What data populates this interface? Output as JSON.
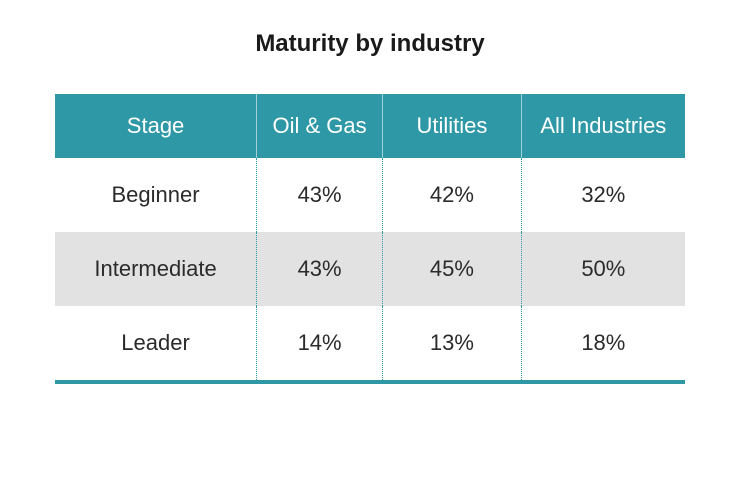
{
  "title": "Maturity by industry",
  "table": {
    "type": "table",
    "columns": [
      "Stage",
      "Oil & Gas",
      "Utilities",
      "All Industries"
    ],
    "rows": [
      [
        "Beginner",
        "43%",
        "42%",
        "32%"
      ],
      [
        "Intermediate",
        "43%",
        "45%",
        "50%"
      ],
      [
        "Leader",
        "14%",
        "13%",
        "18%"
      ]
    ],
    "column_widths_pct": [
      32,
      20,
      22,
      26
    ],
    "header_bg": "#2f98a6",
    "header_text_color": "#ffffff",
    "row_bg": "#ffffff",
    "alt_row_bg": "#e2e2e2",
    "alt_row_index": 1,
    "text_color": "#2b2b2b",
    "divider_color": "#2f98a6",
    "bottom_rule_color": "#2f98a6",
    "title_fontsize": 24,
    "cell_fontsize": 22,
    "header_fontsize": 22
  }
}
